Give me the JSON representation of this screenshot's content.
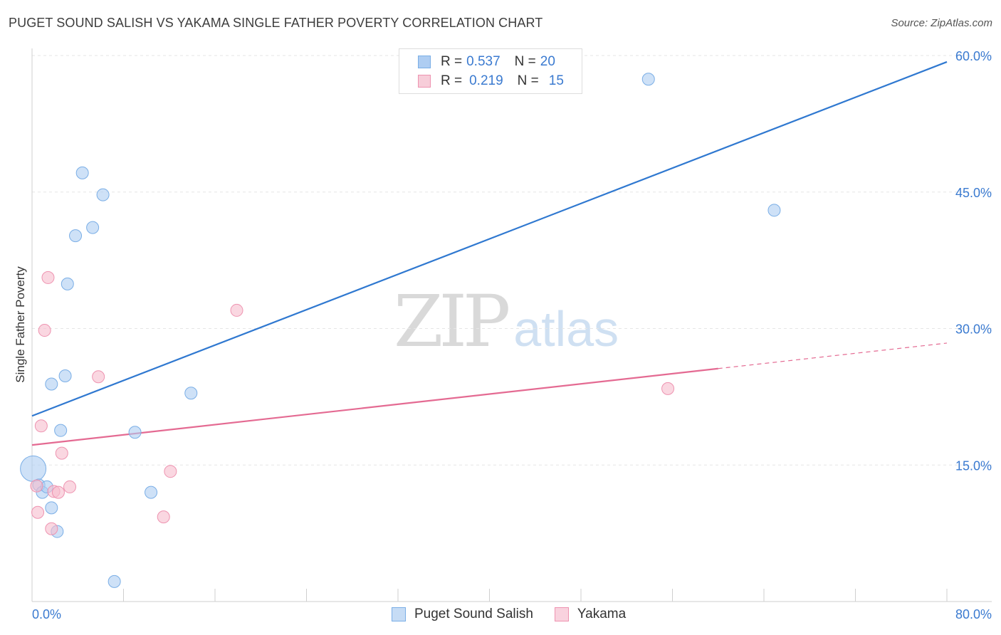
{
  "title": "PUGET SOUND SALISH VS YAKAMA SINGLE FATHER POVERTY CORRELATION CHART",
  "source": "Source: ZipAtlas.com",
  "watermark": {
    "part1": "ZIP",
    "part2": "atlas"
  },
  "colors": {
    "blue_fill": "#aecdf2",
    "blue_stroke": "#7aaee6",
    "blue_line": "#2f78d0",
    "pink_fill": "#f7bccd",
    "pink_stroke": "#ee93b0",
    "pink_line": "#e46a92",
    "axis_text": "#3a7ad0",
    "grid": "#e6e6e6"
  },
  "legend": {
    "rows": [
      {
        "r_label": "R =",
        "r_value": "0.537",
        "n_label": "N =",
        "n_value": "20"
      },
      {
        "r_label": "R =",
        "r_value": "0.219",
        "n_label": "N =",
        "n_value": "15"
      }
    ]
  },
  "bottom_legend": [
    "Puget Sound Salish",
    "Yakama"
  ],
  "chart_data": {
    "type": "scatter",
    "title": "PUGET SOUND SALISH VS YAKAMA SINGLE FATHER POVERTY CORRELATION CHART",
    "xlabel": "",
    "ylabel": "Single Father Poverty",
    "xlim": [
      0,
      80
    ],
    "ylim": [
      0,
      60
    ],
    "x_tick_labels": [
      "0.0%",
      "80.0%"
    ],
    "y_ticks": [
      15,
      30,
      45,
      60
    ],
    "y_tick_labels": [
      "15.0%",
      "30.0%",
      "45.0%",
      "60.0%"
    ],
    "x_minor_ticks": [
      8,
      16,
      24,
      32,
      40,
      48,
      56,
      64,
      72
    ],
    "series": [
      {
        "name": "Puget Sound Salish",
        "color": "blue",
        "r": 0.537,
        "n": 20,
        "points": [
          {
            "x": 0.1,
            "y": 14.6,
            "big": true
          },
          {
            "x": 0.6,
            "y": 12.8
          },
          {
            "x": 0.9,
            "y": 12.0
          },
          {
            "x": 1.3,
            "y": 12.6
          },
          {
            "x": 1.7,
            "y": 10.3
          },
          {
            "x": 2.2,
            "y": 7.7
          },
          {
            "x": 2.5,
            "y": 18.8
          },
          {
            "x": 1.7,
            "y": 23.9
          },
          {
            "x": 2.9,
            "y": 24.8
          },
          {
            "x": 3.1,
            "y": 34.9
          },
          {
            "x": 3.8,
            "y": 40.2
          },
          {
            "x": 4.4,
            "y": 47.1
          },
          {
            "x": 5.3,
            "y": 41.1
          },
          {
            "x": 6.2,
            "y": 44.7
          },
          {
            "x": 9.0,
            "y": 18.6
          },
          {
            "x": 10.4,
            "y": 12.0
          },
          {
            "x": 13.9,
            "y": 22.9
          },
          {
            "x": 7.2,
            "y": 2.2
          },
          {
            "x": 53.9,
            "y": 57.4
          },
          {
            "x": 64.9,
            "y": 43.0
          }
        ],
        "trend": {
          "x0": 0,
          "y0": 20.4,
          "x1": 80,
          "y1": 59.3,
          "dash_from": null
        }
      },
      {
        "name": "Yakama",
        "color": "pink",
        "r": 0.219,
        "n": 15,
        "points": [
          {
            "x": 0.4,
            "y": 12.7
          },
          {
            "x": 0.5,
            "y": 9.8
          },
          {
            "x": 0.8,
            "y": 19.3
          },
          {
            "x": 1.1,
            "y": 29.8
          },
          {
            "x": 1.4,
            "y": 35.6
          },
          {
            "x": 1.7,
            "y": 8.0
          },
          {
            "x": 1.9,
            "y": 12.1
          },
          {
            "x": 2.3,
            "y": 12.0
          },
          {
            "x": 2.6,
            "y": 16.3
          },
          {
            "x": 3.3,
            "y": 12.6
          },
          {
            "x": 5.8,
            "y": 24.7
          },
          {
            "x": 11.5,
            "y": 9.3
          },
          {
            "x": 12.1,
            "y": 14.3
          },
          {
            "x": 17.9,
            "y": 32.0
          },
          {
            "x": 55.6,
            "y": 23.4
          }
        ],
        "trend": {
          "x0": 0,
          "y0": 17.2,
          "x1": 80,
          "y1": 28.4,
          "dash_from": 60
        }
      }
    ]
  }
}
